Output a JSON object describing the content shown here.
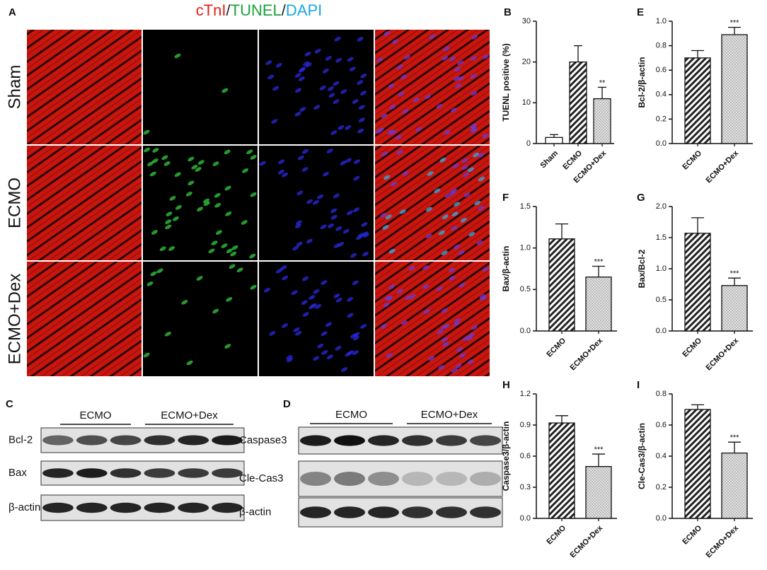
{
  "panel_a": {
    "label": "A",
    "title_parts": [
      "cTnI",
      "/",
      "TUNEL",
      "/",
      "DAPI"
    ],
    "title_colors": [
      "#e8201a",
      "#222222",
      "#1aa33a",
      "#222222",
      "#18a8e0"
    ],
    "rows": [
      "Sham",
      "ECMO",
      "ECMO+Dex"
    ]
  },
  "panel_c": {
    "label": "C",
    "groups": [
      "ECMO",
      "ECMO+Dex"
    ],
    "rows": [
      "Bcl-2",
      "Bax",
      "β-actin"
    ]
  },
  "panel_d": {
    "label": "D",
    "groups": [
      "ECMO",
      "ECMO+Dex"
    ],
    "rows": [
      "Caspase3",
      "Cle-Cas3",
      "β-actin"
    ]
  },
  "chart_data": [
    {
      "panel": "B",
      "type": "bar",
      "ylabel": "TUENL positive (%)",
      "categories": [
        "Sham",
        "ECMO",
        "ECMO+Dex"
      ],
      "values": [
        1.5,
        20,
        11
      ],
      "errors": [
        0.7,
        4,
        2.8
      ],
      "patterns": [
        "none",
        "hatch",
        "dots"
      ],
      "significance": [
        null,
        null,
        "**"
      ],
      "ylim": [
        0,
        30
      ],
      "yticks": [
        0,
        10,
        20,
        30
      ]
    },
    {
      "panel": "E",
      "type": "bar",
      "ylabel": "Bcl-2/β-actin",
      "categories": [
        "ECMO",
        "ECMO+Dex"
      ],
      "values": [
        0.7,
        0.89
      ],
      "errors": [
        0.06,
        0.06
      ],
      "patterns": [
        "hatch",
        "dots"
      ],
      "significance": [
        null,
        "***"
      ],
      "ylim": [
        0,
        1.0
      ],
      "yticks": [
        {
          "value": 0,
          "label": "0.0"
        },
        0.2,
        0.4,
        0.6,
        0.8,
        {
          "value": 1,
          "label": "1.0"
        }
      ]
    },
    {
      "panel": "F",
      "type": "bar",
      "ylabel": "Bax/β-actin",
      "categories": [
        "ECMO",
        "ECMO+Dex"
      ],
      "values": [
        1.11,
        0.65
      ],
      "errors": [
        0.18,
        0.13
      ],
      "patterns": [
        "hatch",
        "dots"
      ],
      "significance": [
        null,
        "***"
      ],
      "ylim": [
        0,
        1.5
      ],
      "yticks": [
        {
          "value": 0,
          "label": "0.0"
        },
        0.5,
        {
          "value": 1,
          "label": "1.0"
        },
        1.5
      ]
    },
    {
      "panel": "G",
      "type": "bar",
      "ylabel": "Bax/Bcl-2",
      "categories": [
        "ECMO",
        "ECMO+Dex"
      ],
      "values": [
        1.57,
        0.73
      ],
      "errors": [
        0.25,
        0.12
      ],
      "patterns": [
        "hatch",
        "dots"
      ],
      "significance": [
        null,
        "***"
      ],
      "ylim": [
        0,
        2.0
      ],
      "yticks": [
        {
          "value": 0,
          "label": "0.0"
        },
        0.5,
        {
          "value": 1,
          "label": "1.0"
        },
        1.5,
        {
          "value": 2,
          "label": "2.0"
        }
      ]
    },
    {
      "panel": "H",
      "type": "bar",
      "ylabel": "Caspase3/β-actin",
      "categories": [
        "ECMO",
        "ECMO+Dex"
      ],
      "values": [
        0.92,
        0.5
      ],
      "errors": [
        0.07,
        0.12
      ],
      "patterns": [
        "hatch",
        "dots"
      ],
      "significance": [
        null,
        "***"
      ],
      "ylim": [
        0,
        1.2
      ],
      "yticks": [
        {
          "value": 0,
          "label": "0.0"
        },
        0.3,
        0.6,
        0.9,
        1.2
      ]
    },
    {
      "panel": "I",
      "type": "bar",
      "ylabel": "Cle-Cas3/β-actin",
      "categories": [
        "ECMO",
        "ECMO+Dex"
      ],
      "values": [
        0.7,
        0.42
      ],
      "errors": [
        0.03,
        0.07
      ],
      "patterns": [
        "hatch",
        "dots"
      ],
      "significance": [
        null,
        "***"
      ],
      "ylim": [
        0,
        0.8
      ],
      "yticks": [
        {
          "value": 0,
          "label": "0.0"
        },
        0.2,
        0.4,
        0.6,
        0.8
      ]
    }
  ]
}
